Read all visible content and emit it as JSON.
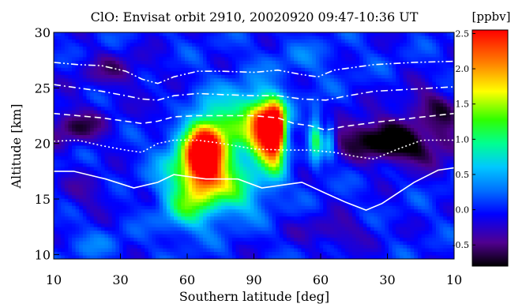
{
  "chart_data": {
    "type": "heatmap",
    "title": "ClO: Envisat orbit 2910, 20020920 09:47-10:36 UT",
    "xlabel": "Southern latitude [deg]",
    "ylabel": "Altitude [km]",
    "x_ticks": [
      "10",
      "30",
      "60",
      "90",
      "60",
      "30",
      "10"
    ],
    "y_ticks": [
      10,
      15,
      20,
      25,
      30
    ],
    "ylim": [
      9.6,
      30
    ],
    "colorbar": {
      "label": "[ppbv]",
      "range": [
        -0.8,
        2.55
      ],
      "ticks": [
        "2.5",
        "2.0",
        "1.5",
        "1.0",
        "0.5",
        "0.0",
        "-0.5"
      ],
      "tick_values": [
        2.5,
        2.0,
        1.5,
        1.0,
        0.5,
        0.0,
        -0.5
      ]
    },
    "grid": false,
    "background_value": 0.0,
    "features": [
      {
        "x": 0.53,
        "y": 21.0,
        "value": 2.4,
        "sx": 0.028,
        "sy": 1.8
      },
      {
        "x": 0.555,
        "y": 21.3,
        "value": 2.2,
        "sx": 0.016,
        "sy": 1.5
      },
      {
        "x": 0.375,
        "y": 19.0,
        "value": 2.0,
        "sx": 0.03,
        "sy": 2.0
      },
      {
        "x": 0.36,
        "y": 17.5,
        "value": 1.3,
        "sx": 0.06,
        "sy": 2.5
      },
      {
        "x": 0.42,
        "y": 20.5,
        "value": 0.9,
        "sx": 0.06,
        "sy": 2.5
      },
      {
        "x": 0.5,
        "y": 23.0,
        "value": 0.7,
        "sx": 0.05,
        "sy": 1.5
      },
      {
        "x": 0.46,
        "y": 15.5,
        "value": 0.7,
        "sx": 0.05,
        "sy": 1.5
      },
      {
        "x": 0.555,
        "y": 18.0,
        "value": 0.6,
        "sx": 0.02,
        "sy": 1.5
      },
      {
        "x": 0.655,
        "y": 20.5,
        "value": 1.1,
        "sx": 0.012,
        "sy": 1.7
      },
      {
        "x": 0.69,
        "y": 20.5,
        "value": 0.8,
        "sx": 0.01,
        "sy": 1.3
      },
      {
        "x": 0.33,
        "y": 14.0,
        "value": 0.6,
        "sx": 0.04,
        "sy": 1.5
      },
      {
        "x": 0.05,
        "y": 21.5,
        "value": -0.6,
        "sx": 0.06,
        "sy": 1.2
      },
      {
        "x": 0.08,
        "y": 15.5,
        "value": -0.3,
        "sx": 0.05,
        "sy": 1.2
      },
      {
        "x": 0.78,
        "y": 20.8,
        "value": -0.65,
        "sx": 0.08,
        "sy": 1.3
      },
      {
        "x": 0.88,
        "y": 19.5,
        "value": -0.7,
        "sx": 0.07,
        "sy": 1.2
      },
      {
        "x": 0.15,
        "y": 26.5,
        "value": -0.4,
        "sx": 0.07,
        "sy": 1.2
      },
      {
        "x": 0.93,
        "y": 23.5,
        "value": -0.5,
        "sx": 0.05,
        "sy": 1.2
      },
      {
        "x": 0.7,
        "y": 12.0,
        "value": -0.4,
        "sx": 0.06,
        "sy": 1.0
      },
      {
        "x": 0.1,
        "y": 11.0,
        "value": 0.2,
        "sx": 0.06,
        "sy": 1.0
      },
      {
        "x": 0.62,
        "y": 27.5,
        "value": 0.2,
        "sx": 0.08,
        "sy": 1.2
      },
      {
        "x": 0.3,
        "y": 22.5,
        "value": -0.3,
        "sx": 0.05,
        "sy": 1.0
      },
      {
        "x": 0.98,
        "y": 21.0,
        "value": -0.4,
        "sx": 0.03,
        "sy": 1.5
      }
    ],
    "contours": [
      {
        "style": "solid",
        "x": [
          0,
          0.05,
          0.13,
          0.2,
          0.26,
          0.3,
          0.38,
          0.46,
          0.52,
          0.58,
          0.62,
          0.68,
          0.73,
          0.78,
          0.82,
          0.9,
          0.96,
          1
        ],
        "y": [
          17.5,
          17.5,
          16.8,
          16.0,
          16.5,
          17.2,
          16.8,
          16.8,
          16.0,
          16.3,
          16.5,
          15.5,
          14.7,
          14.0,
          14.6,
          16.5,
          17.6,
          17.8
        ]
      },
      {
        "style": "dotted",
        "x": [
          0,
          0.06,
          0.12,
          0.18,
          0.22,
          0.26,
          0.3,
          0.36,
          0.42,
          0.5,
          0.58,
          0.64,
          0.7,
          0.76,
          0.8,
          0.86,
          0.92,
          1
        ],
        "y": [
          20.2,
          20.3,
          19.8,
          19.4,
          19.2,
          20.0,
          20.3,
          20.3,
          20.0,
          19.5,
          19.4,
          19.4,
          19.2,
          18.8,
          18.6,
          19.5,
          20.3,
          20.3
        ]
      },
      {
        "style": "dashed",
        "x": [
          0,
          0.06,
          0.12,
          0.18,
          0.22,
          0.26,
          0.3,
          0.36,
          0.42,
          0.5,
          0.56,
          0.6,
          0.64,
          0.68,
          0.72,
          0.8,
          0.9,
          1
        ],
        "y": [
          22.7,
          22.5,
          22.3,
          22.0,
          21.8,
          22.0,
          22.4,
          22.5,
          22.5,
          22.5,
          22.3,
          21.8,
          21.6,
          21.2,
          21.5,
          21.9,
          22.3,
          22.7
        ]
      },
      {
        "style": "dashdot",
        "x": [
          0,
          0.06,
          0.12,
          0.18,
          0.22,
          0.26,
          0.3,
          0.36,
          0.42,
          0.5,
          0.56,
          0.62,
          0.68,
          0.72,
          0.8,
          0.9,
          1
        ],
        "y": [
          25.3,
          25.0,
          24.7,
          24.3,
          24.0,
          23.9,
          24.3,
          24.5,
          24.4,
          24.3,
          24.3,
          24.0,
          23.9,
          24.2,
          24.7,
          24.9,
          25.1
        ]
      },
      {
        "style": "dashdotdot",
        "x": [
          0,
          0.06,
          0.12,
          0.18,
          0.22,
          0.26,
          0.3,
          0.36,
          0.42,
          0.5,
          0.56,
          0.62,
          0.66,
          0.7,
          0.8,
          0.9,
          1
        ],
        "y": [
          27.3,
          27.1,
          27.0,
          26.5,
          25.8,
          25.4,
          26.0,
          26.5,
          26.5,
          26.4,
          26.6,
          26.2,
          26.0,
          26.6,
          27.1,
          27.3,
          27.4
        ]
      }
    ]
  }
}
